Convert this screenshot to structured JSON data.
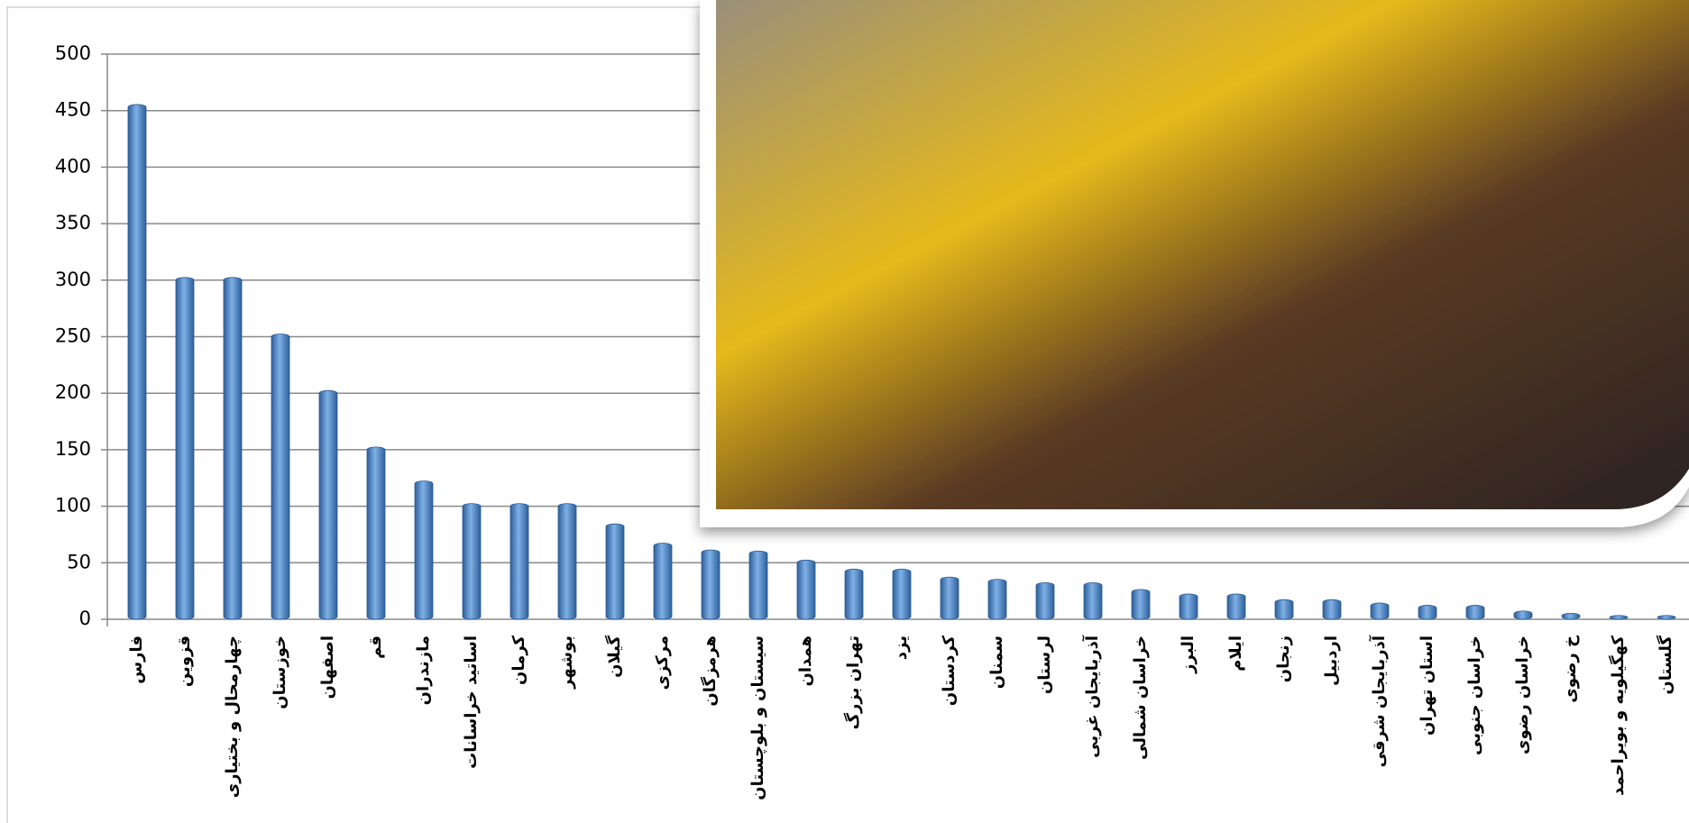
{
  "chart_data": {
    "type": "bar",
    "categories": [
      "فارس",
      "قزوین",
      "چهارمحال و بختیاری",
      "خوزستان",
      "اصفهان",
      "قم",
      "مازندران",
      "اساتید خراسانات",
      "کرمان",
      "بوشهر",
      "گیلان",
      "مرکزی",
      "هرمزگان",
      "سیستان و بلوچستان",
      "همدان",
      "تهران بزرگ",
      "یزد",
      "کردستان",
      "سمنان",
      "لرستان",
      "آذربایجان غربی",
      "خراسان شمالی",
      "البرز",
      "ایلام",
      "زنجان",
      "اردبیل",
      "آذربایجان شرقی",
      "استان تهران",
      "خراسان جنوبی",
      "خراسان رضوی",
      "خ رضوی",
      "کهگیلویه و بویراحمد",
      "گلستان"
    ],
    "values": [
      453,
      300,
      300,
      250,
      200,
      150,
      120,
      100,
      100,
      100,
      82,
      65,
      59,
      58,
      50,
      42,
      42,
      35,
      33,
      30,
      30,
      24,
      20,
      20,
      15,
      15,
      12,
      10,
      10,
      5,
      3,
      1,
      1
    ],
    "color": "#4a86c8",
    "ylim": [
      0,
      500
    ],
    "yticks": [
      0,
      50,
      100,
      150,
      200,
      250,
      300,
      350,
      400,
      450,
      500
    ],
    "grid": true
  }
}
